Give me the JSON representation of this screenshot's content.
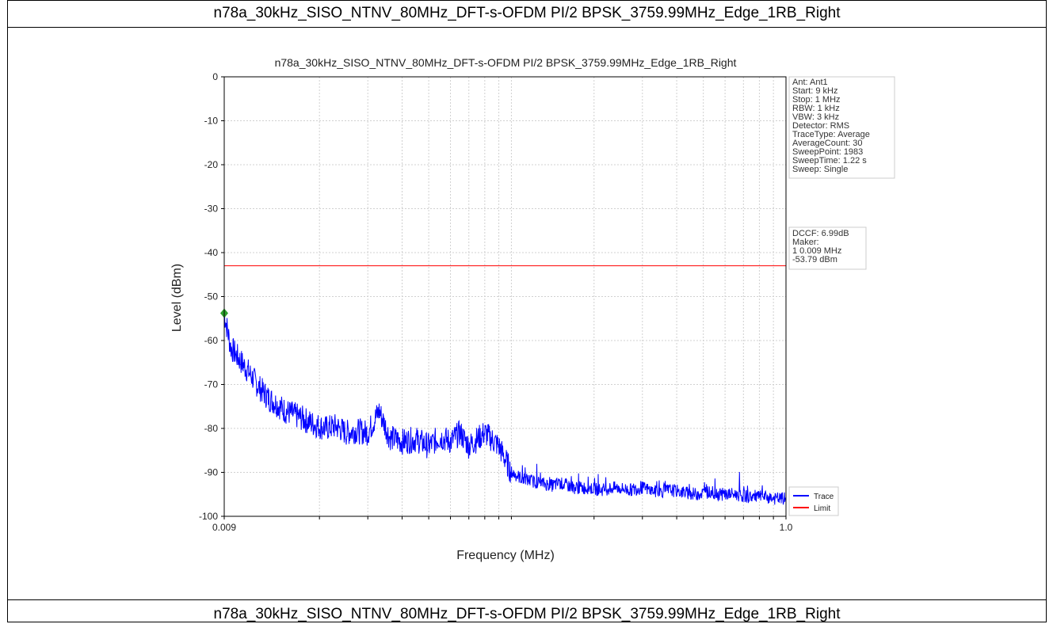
{
  "page": {
    "top_caption": "n78a_30kHz_SISO_NTNV_80MHz_DFT-s-OFDM PI/2 BPSK_3759.99MHz_Edge_1RB_Right",
    "bottom_caption": "n78a_30kHz_SISO_NTNV_80MHz_DFT-s-OFDM PI/2 BPSK_3759.99MHz_Edge_1RB_Right"
  },
  "chart_data": {
    "type": "line",
    "title": "n78a_30kHz_SISO_NTNV_80MHz_DFT-s-OFDM PI/2 BPSK_3759.99MHz_Edge_1RB_Right",
    "xlabel": "Frequency (MHz)",
    "ylabel": "Level (dBm)",
    "xscale": "log",
    "xlim": [
      0.009,
      1.0
    ],
    "ylim": [
      -100,
      0
    ],
    "x_tick_labels": [
      "0.009",
      "1.0"
    ],
    "y_ticks": [
      0,
      -10,
      -20,
      -30,
      -40,
      -50,
      -60,
      -70,
      -80,
      -90,
      -100
    ],
    "grid": true,
    "series": [
      {
        "name": "Trace",
        "color": "#0000ff",
        "x": [
          0.009,
          0.0095,
          0.01,
          0.011,
          0.012,
          0.013,
          0.014,
          0.015,
          0.017,
          0.019,
          0.021,
          0.023,
          0.025,
          0.027,
          0.03,
          0.033,
          0.036,
          0.04,
          0.045,
          0.05,
          0.055,
          0.06,
          0.065,
          0.07,
          0.075,
          0.08,
          0.09,
          0.1,
          0.11,
          0.12,
          0.13,
          0.14,
          0.15,
          0.17,
          0.19,
          0.21,
          0.24,
          0.27,
          0.3,
          0.34,
          0.38,
          0.42,
          0.47,
          0.52,
          0.58,
          0.65,
          0.72,
          0.8,
          0.9,
          1.0
        ],
        "values": [
          -53.8,
          -61.5,
          -63.5,
          -67,
          -70.5,
          -73,
          -74.5,
          -76,
          -77.5,
          -79,
          -80,
          -79.5,
          -81,
          -80.5,
          -81,
          -76,
          -82,
          -83,
          -82.5,
          -84,
          -82,
          -83,
          -81,
          -84,
          -82.5,
          -81,
          -84,
          -90,
          -91.5,
          -92,
          -92.5,
          -93,
          -92.5,
          -93.5,
          -93.5,
          -94,
          -93.5,
          -94,
          -93.5,
          -94.5,
          -94,
          -94.5,
          -95,
          -94.5,
          -95,
          -95,
          -95.5,
          -95.5,
          -96,
          -96
        ]
      },
      {
        "name": "Limit",
        "color": "#ff0000",
        "x": [
          0.009,
          1.0
        ],
        "values": [
          -43,
          -43
        ]
      }
    ],
    "marker": {
      "x": 0.009,
      "y": -53.79,
      "color": "#2ca02c"
    },
    "legend": [
      "Trace",
      "Limit"
    ],
    "legend_position": "bottom-right",
    "info_box_1": [
      "Ant: Ant1",
      "Start: 9 kHz",
      "Stop: 1 MHz",
      "RBW: 1 kHz",
      "VBW: 3 kHz",
      "Detector: RMS",
      "TraceType: Average",
      "AverageCount: 30",
      "SweepPoint: 1983",
      "SweepTime: 1.22 s",
      "Sweep: Single"
    ],
    "info_box_2": [
      "DCCF: 6.99dB",
      "Maker:",
      "1  0.009 MHz",
      "    -53.79 dBm"
    ]
  }
}
